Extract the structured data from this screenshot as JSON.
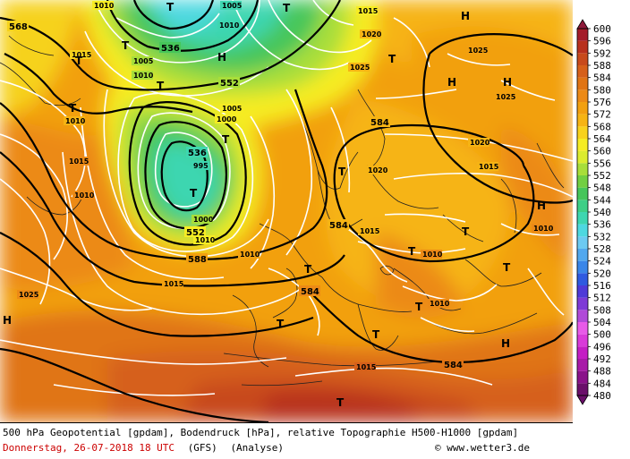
{
  "legend": {
    "min": 480,
    "max": 600,
    "ticks": [
      480,
      484,
      488,
      492,
      496,
      500,
      504,
      508,
      512,
      516,
      520,
      524,
      528,
      532,
      536,
      540,
      544,
      548,
      552,
      556,
      560,
      564,
      568,
      572,
      576,
      580,
      584,
      588,
      592,
      596,
      600
    ],
    "colors": {
      "480": "#6a0f6a",
      "484": "#8a128a",
      "488": "#a81aa8",
      "492": "#c41ec4",
      "496": "#d93ad9",
      "500": "#e85ae8",
      "504": "#b04ad8",
      "508": "#7e3ad6",
      "512": "#4f3ad8",
      "516": "#2f5ae0",
      "520": "#3a86e8",
      "524": "#52a8ee",
      "528": "#6ccaf2",
      "532": "#4ed8e0",
      "536": "#3ed6b0",
      "540": "#3ecf86",
      "544": "#46c65a",
      "548": "#72cf42",
      "552": "#a8de3a",
      "556": "#dcec2e",
      "560": "#f6ec24",
      "564": "#f8d21c",
      "568": "#f6b414",
      "572": "#f2a010",
      "576": "#ec8a16",
      "580": "#e07414",
      "584": "#d6601a",
      "588": "#c84a1c",
      "592": "#b8301e",
      "596": "#a41c2a",
      "600": "#8e1a3a"
    }
  },
  "footer": {
    "line1": "500 hPa Geopotential [gpdam], Bodendruck [hPa], relative Topographie H500-H1000 [gpdam]",
    "date": "Donnerstag, 26-07-2018  18 UTC",
    "model": "(GFS)",
    "analyse": "(Analyse)",
    "copyright": "© www.wetter3.de"
  },
  "geopotential_labels": [
    "568",
    "536",
    "552",
    "536",
    "584",
    "588",
    "552",
    "584",
    "584",
    "584"
  ],
  "pressure_labels": [
    "1010",
    "1005",
    "1010",
    "1015",
    "1005",
    "1010",
    "1025",
    "1020",
    "1025",
    "1015",
    "1010",
    "1005",
    "1000",
    "995",
    "1025",
    "1020",
    "1015",
    "1020",
    "1015",
    "1010",
    "1010",
    "1015",
    "1025",
    "1000",
    "1010",
    "1010",
    "1010",
    "1015",
    "1010",
    "1015"
  ],
  "high_symbols": [
    "H",
    "H",
    "H",
    "H",
    "H",
    "H",
    "H"
  ],
  "low_symbols": [
    "T",
    "T",
    "T",
    "T",
    "T",
    "T",
    "T",
    "T",
    "T",
    "T",
    "T",
    "T",
    "T",
    "T",
    "T",
    "T",
    "T",
    "T"
  ],
  "colors": {
    "isobar": "#ffffff",
    "geopotential": "#000000",
    "coast": "#202020"
  }
}
